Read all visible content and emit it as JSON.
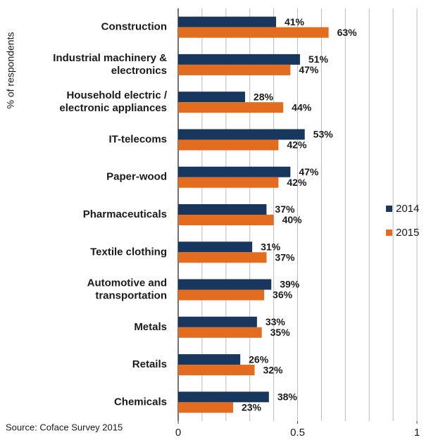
{
  "chart_data": {
    "type": "bar",
    "orientation": "horizontal",
    "y_axis_label": "% of respondents",
    "source": "Source: Coface Survey 2015",
    "categories": [
      "Construction",
      "Industrial machinery &\nelectronics",
      "Household electric /\nelectronic appliances",
      "IT-telecoms",
      "Paper-wood",
      "Pharmaceuticals",
      "Textile clothing",
      "Automotive and\ntransportation",
      "Metals",
      "Retails",
      "Chemicals"
    ],
    "series": [
      {
        "name": "2014",
        "color": "#17375e",
        "values": [
          0.41,
          0.51,
          0.28,
          0.53,
          0.47,
          0.37,
          0.31,
          0.39,
          0.33,
          0.26,
          0.38
        ],
        "value_labels": [
          "41%",
          "51%",
          "28%",
          "53%",
          "47%",
          "37%",
          "31%",
          "39%",
          "33%",
          "26%",
          "38%"
        ]
      },
      {
        "name": "2015",
        "color": "#e46c1e",
        "values": [
          0.63,
          0.47,
          0.44,
          0.42,
          0.42,
          0.4,
          0.37,
          0.36,
          0.35,
          0.32,
          0.23
        ],
        "value_labels": [
          "63%",
          "47%",
          "44%",
          "42%",
          "42%",
          "40%",
          "37%",
          "36%",
          "35%",
          "32%",
          "23%"
        ]
      }
    ],
    "xlim": [
      0,
      1
    ],
    "xticks": [
      0,
      0.5,
      1
    ],
    "x_gridlines": [
      0.1,
      0.2,
      0.3,
      0.4,
      0.5,
      0.6,
      0.7,
      0.8,
      0.9,
      1
    ],
    "grid": true,
    "legend": "right"
  }
}
